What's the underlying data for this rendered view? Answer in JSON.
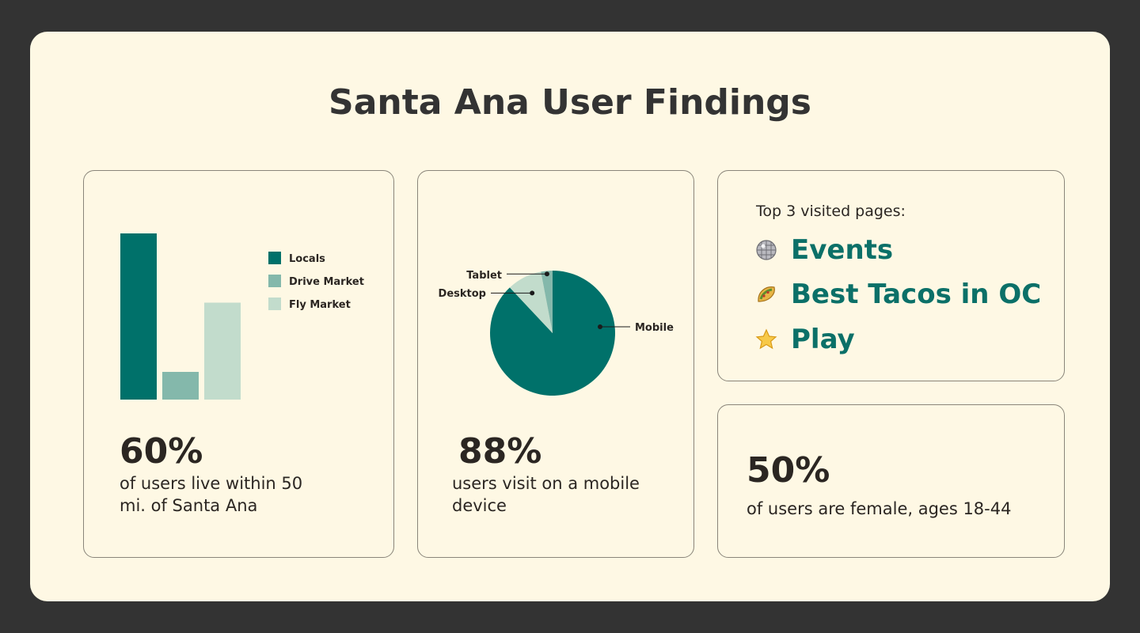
{
  "title": "Santa Ana User Findings",
  "colors": {
    "frame_bg": "#fef8e4",
    "outer_bg": "#333333",
    "teal_dark": "#00716a",
    "teal_mid": "#84b8ab",
    "teal_light": "#c2dccc",
    "accent_text": "#0b7068"
  },
  "cards": {
    "residence": {
      "stat": "60%",
      "desc_line1": "of users live within 50",
      "desc_line2": "mi. of Santa Ana"
    },
    "device": {
      "stat": "88%",
      "desc_line1": "users visit on a mobile",
      "desc_line2": "device"
    },
    "pages": {
      "heading": "Top 3 visited pages:",
      "items": [
        {
          "label": "Events",
          "icon": "disco-ball-icon"
        },
        {
          "label": "Best Tacos in OC",
          "icon": "taco-icon"
        },
        {
          "label": "Play",
          "icon": "star-icon"
        }
      ]
    },
    "gender": {
      "stat": "50%",
      "desc": "of users are female, ages 18-44"
    }
  },
  "chart_data": [
    {
      "type": "bar",
      "categories": [
        "Locals",
        "Drive Market",
        "Fly Market"
      ],
      "values": [
        60,
        10,
        35
      ],
      "ylim": [
        0,
        60
      ],
      "legend": {
        "position": "top-right",
        "entries": [
          "Locals",
          "Drive Market",
          "Fly Market"
        ]
      },
      "xlabel": "",
      "ylabel": "",
      "grid": false
    },
    {
      "type": "pie",
      "categories": [
        "Mobile",
        "Desktop",
        "Tablet"
      ],
      "values": [
        88,
        9,
        3
      ],
      "grid": false
    }
  ]
}
